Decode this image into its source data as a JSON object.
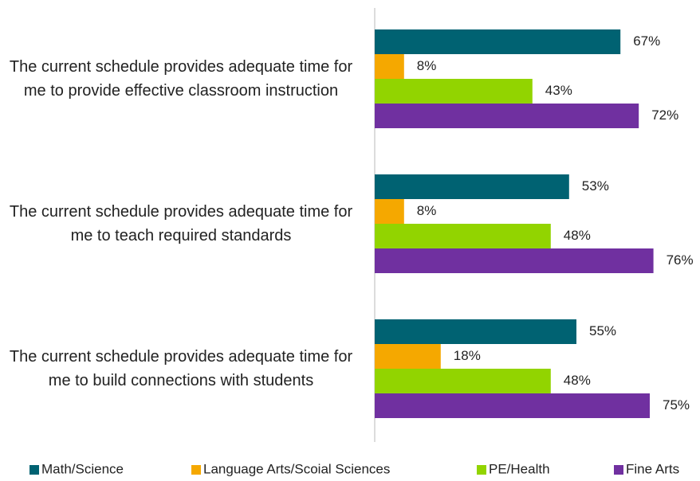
{
  "chart_data": {
    "type": "bar",
    "orientation": "horizontal",
    "categories": [
      "The current schedule provides adequate time for me to provide effective classroom instruction",
      "The current schedule provides adequate time for me to teach required standards",
      "The current schedule provides adequate time for me to build connections with students"
    ],
    "series": [
      {
        "name": "Math/Science",
        "color": "#006272",
        "values": [
          67,
          53,
          55
        ],
        "value_labels": [
          "67%",
          "53%",
          "55%"
        ]
      },
      {
        "name": "Language Arts/Scoial Sciences",
        "color": "#f5a800",
        "values": [
          8,
          8,
          18
        ],
        "value_labels": [
          "8%",
          "8%",
          "18%"
        ]
      },
      {
        "name": "PE/Health",
        "color": "#92d400",
        "values": [
          43,
          48,
          48
        ],
        "value_labels": [
          "43%",
          "48%",
          "48%"
        ]
      },
      {
        "name": "Fine Arts",
        "color": "#7030a0",
        "values": [
          72,
          76,
          75
        ],
        "value_labels": [
          "72%",
          "76%",
          "75%"
        ]
      }
    ],
    "xlim": [
      0,
      100
    ],
    "legend": "bottom"
  }
}
